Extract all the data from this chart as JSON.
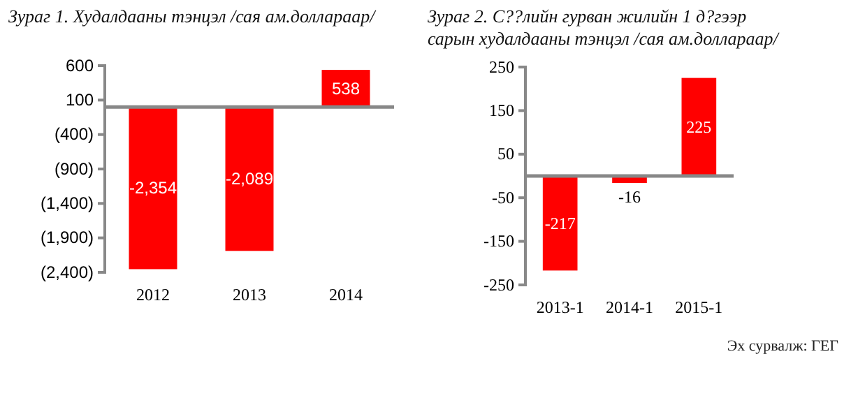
{
  "chart_data": [
    {
      "type": "bar",
      "title": "Зураг 1. Худалдааны тэнцэл /сая ам.доллараар/",
      "categories": [
        "2012",
        "2013",
        "2014"
      ],
      "values": [
        -2354,
        -2089,
        538
      ],
      "value_labels": [
        "-2,354",
        "-2,089",
        "538"
      ],
      "color": "#ff0000",
      "ylim": [
        -2400,
        600
      ],
      "yticks": [
        600,
        100,
        {
          "value": -400,
          "label": "(400)"
        },
        {
          "value": -900,
          "label": "(900)"
        },
        {
          "value": -1400,
          "label": "(1,400)"
        },
        {
          "value": -1900,
          "label": "(1,900)"
        },
        {
          "value": -2400,
          "label": "(2,400)"
        }
      ],
      "grid": false
    },
    {
      "type": "bar",
      "title": "Зураг 2. С??лийн гурван жилийн 1 д?гээр сарын худалдааны тэнцэл /сая ам.доллараар/",
      "categories": [
        "2013-1",
        "2014-1",
        "2015-1"
      ],
      "values": [
        -217,
        -16,
        225
      ],
      "data_labels": true,
      "color": "#ff0000",
      "ylim": [
        -250,
        250
      ],
      "yticks": [
        250,
        150,
        50,
        -50,
        -150,
        -250
      ],
      "grid": false,
      "annotations": [
        "Эх сурвалж: ГЕГ"
      ]
    }
  ]
}
